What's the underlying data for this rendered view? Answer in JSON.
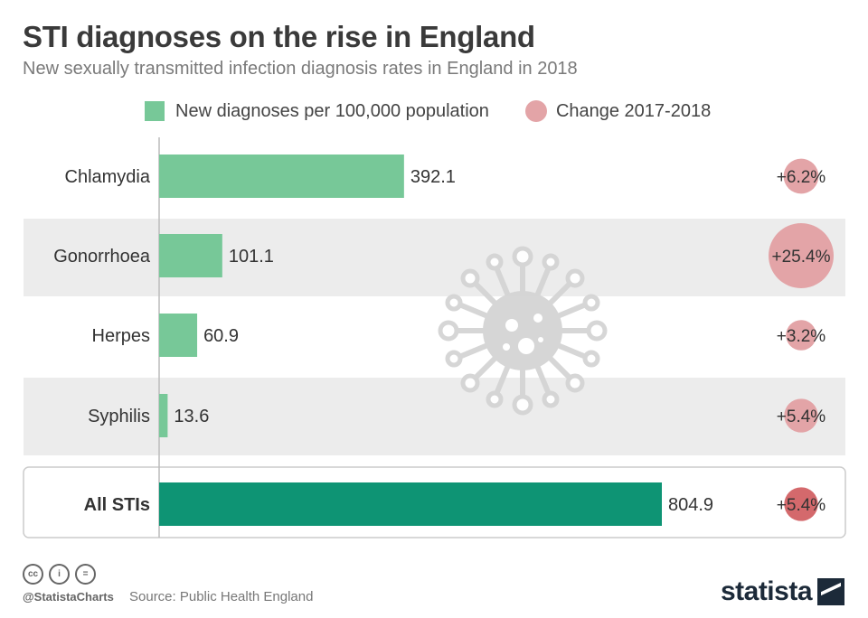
{
  "header": {
    "title": "STI diagnoses on the rise in England",
    "subtitle": "New sexually transmitted infection diagnosis rates in England in 2018"
  },
  "legend": {
    "bars_label": "New diagnoses per 100,000 population",
    "circles_label": "Change 2017-2018"
  },
  "chart_data": {
    "type": "bar",
    "orientation": "horizontal",
    "categories": [
      "Chlamydia",
      "Gonorrhoea",
      "Herpes",
      "Syphilis",
      "All STIs"
    ],
    "series": [
      {
        "name": "New diagnoses per 100,000 population",
        "values": [
          392.1,
          101.1,
          60.9,
          13.6,
          804.9
        ],
        "value_labels": [
          "392.1",
          "101.1",
          "60.9",
          "13.6",
          "804.9"
        ]
      },
      {
        "name": "Change 2017-2018",
        "values": [
          6.2,
          25.4,
          3.2,
          5.4,
          5.4
        ],
        "value_labels": [
          "+6.2%",
          "+25.4%",
          "+3.2%",
          "+5.4%",
          "+5.4%"
        ]
      }
    ],
    "highlight_category": "All STIs",
    "colors": {
      "bar": "#77c898",
      "bar_total": "#0e9474",
      "circle": "#e3a4a7",
      "circle_total": "#d4696c",
      "band": "#ececec"
    },
    "xlim": [
      0,
      804.9
    ]
  },
  "footer": {
    "handle": "@StatistaCharts",
    "source": "Source: Public Health England",
    "brand": "statista"
  }
}
